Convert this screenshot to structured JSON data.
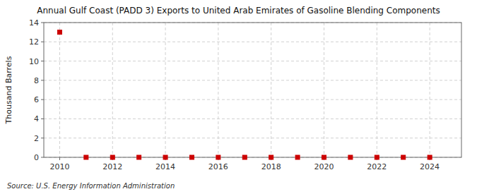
{
  "chart_data": {
    "type": "scatter",
    "title": "Annual Gulf Coast (PADD 3) Exports to United Arab Emirates of Gasoline Blending Components",
    "ylabel": "Thousand Barrels",
    "source": "Source: U.S. Energy Information Administration",
    "x": [
      2010,
      2011,
      2012,
      2013,
      2014,
      2015,
      2016,
      2017,
      2018,
      2019,
      2020,
      2021,
      2022,
      2023,
      2024
    ],
    "values": [
      13.0,
      0.0,
      0.0,
      0.0,
      0.0,
      0.0,
      0.0,
      0.0,
      0.0,
      0.0,
      0.0,
      0.0,
      0.0,
      0.0,
      0.0
    ],
    "color": "#cc0000",
    "marker": "square",
    "xlim": [
      2009.4,
      2025.2
    ],
    "xticks": [
      2010,
      2012,
      2014,
      2016,
      2018,
      2020,
      2022,
      2024
    ],
    "ylim": [
      0,
      14
    ],
    "yticks": [
      0,
      2,
      4,
      6,
      8,
      10,
      12,
      14
    ],
    "grid": true
  }
}
